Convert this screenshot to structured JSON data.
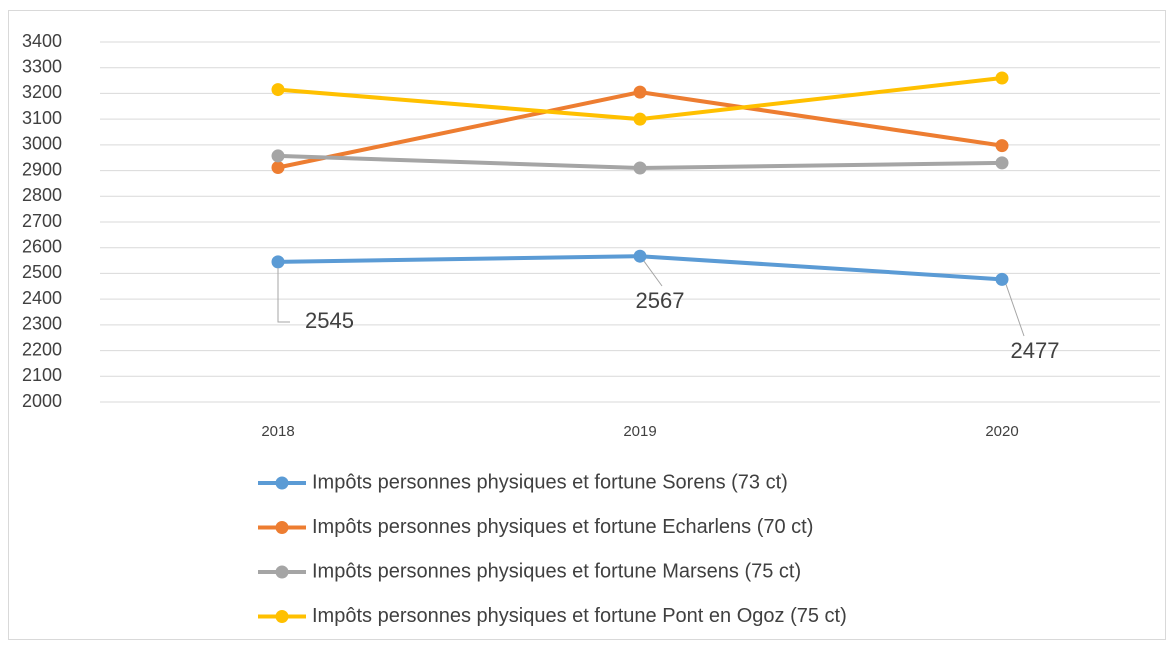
{
  "chart_data": {
    "type": "line",
    "categories": [
      "2018",
      "2019",
      "2020"
    ],
    "series": [
      {
        "name": "Impôts personnes physiques et fortune Sorens (73 ct)",
        "color": "#5b9bd5",
        "values": [
          2545,
          2567,
          2477
        ],
        "show_labels": true
      },
      {
        "name": "Impôts personnes physiques et fortune Echarlens (70 ct)",
        "color": "#ed7d31",
        "values": [
          2912,
          3205,
          2997
        ]
      },
      {
        "name": "Impôts personnes physiques et fortune Marsens (75 ct)",
        "color": "#a5a5a5",
        "values": [
          2957,
          2910,
          2930
        ]
      },
      {
        "name": "Impôts personnes physiques et fortune Pont en Ogoz (75 ct)",
        "color": "#ffc000",
        "values": [
          3215,
          3100,
          3260
        ]
      }
    ],
    "ylim": [
      2000,
      3400
    ],
    "yticks": [
      2000,
      2100,
      2200,
      2300,
      2400,
      2500,
      2600,
      2700,
      2800,
      2900,
      3000,
      3100,
      3200,
      3300,
      3400
    ],
    "grid": true,
    "legend": "bottom"
  }
}
